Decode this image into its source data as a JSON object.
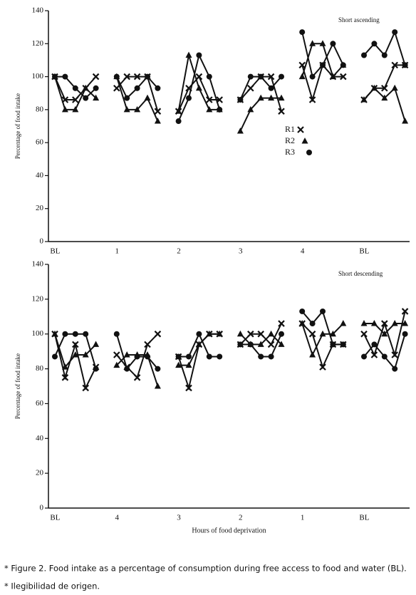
{
  "chart_data": [
    {
      "type": "line",
      "annotation": "Short ascending",
      "ylabel": "Percentage of food intake",
      "categories": [
        null,
        "BL",
        null,
        null,
        null,
        null,
        null,
        "1",
        null,
        null,
        null,
        null,
        null,
        "2",
        null,
        null,
        null,
        null,
        null,
        "3",
        null,
        null,
        null,
        null,
        null,
        "4",
        null,
        null,
        null,
        null,
        null,
        "BL",
        null,
        null,
        null
      ],
      "ylim": [
        0,
        140
      ],
      "yticks": [
        0,
        20,
        40,
        60,
        80,
        100,
        120,
        140
      ],
      "grid": false,
      "legend": "center-right",
      "series": [
        {
          "name": "R1",
          "marker": "x",
          "color": "#111111",
          "values": [
            100,
            86,
            86,
            93,
            100,
            null,
            93,
            100,
            100,
            100,
            79,
            null,
            79,
            93,
            100,
            86,
            86,
            null,
            86,
            93,
            100,
            100,
            79,
            null,
            107,
            86,
            107,
            100,
            100,
            null,
            86,
            93,
            93,
            107,
            107
          ]
        },
        {
          "name": "R2",
          "marker": "triangle",
          "color": "#111111",
          "values": [
            100,
            80,
            80,
            93,
            87,
            null,
            100,
            80,
            80,
            87,
            73,
            null,
            79,
            113,
            93,
            80,
            80,
            null,
            67,
            80,
            87,
            87,
            87,
            null,
            100,
            120,
            120,
            100,
            107,
            null,
            86,
            93,
            87,
            93,
            73
          ]
        },
        {
          "name": "R3",
          "marker": "circle",
          "color": "#111111",
          "values": [
            100,
            100,
            93,
            87,
            93,
            null,
            100,
            87,
            93,
            100,
            93,
            null,
            73,
            87,
            113,
            100,
            80,
            null,
            86,
            100,
            100,
            93,
            100,
            null,
            127,
            100,
            107,
            120,
            107,
            null,
            113,
            120,
            113,
            127,
            107
          ]
        }
      ]
    },
    {
      "type": "line",
      "annotation": "Short descending",
      "ylabel": "Percentage of food intake",
      "xlabel": "Hours of food deprivation",
      "categories": [
        null,
        "BL",
        null,
        null,
        null,
        null,
        null,
        "4",
        null,
        null,
        null,
        null,
        null,
        "3",
        null,
        null,
        null,
        null,
        null,
        "2",
        null,
        null,
        null,
        null,
        null,
        "1",
        null,
        null,
        null,
        null,
        null,
        "BL",
        null,
        null,
        null
      ],
      "ylim": [
        0,
        140
      ],
      "yticks": [
        0,
        20,
        40,
        60,
        80,
        100,
        120,
        140
      ],
      "grid": false,
      "series": [
        {
          "name": "R1",
          "marker": "x",
          "color": "#111111",
          "values": [
            100,
            75,
            94,
            69,
            81,
            null,
            88,
            81,
            75,
            94,
            100,
            null,
            87,
            69,
            94,
            100,
            100,
            null,
            94,
            100,
            100,
            94,
            106,
            null,
            106,
            100,
            81,
            94,
            94,
            null,
            100,
            88,
            106,
            88,
            113
          ]
        },
        {
          "name": "R2",
          "marker": "triangle",
          "color": "#111111",
          "values": [
            100,
            81,
            88,
            88,
            94,
            null,
            82,
            88,
            88,
            88,
            70,
            null,
            82,
            82,
            94,
            100,
            100,
            null,
            100,
            94,
            94,
            100,
            94,
            null,
            106,
            88,
            100,
            100,
            106,
            null,
            106,
            106,
            100,
            106,
            106
          ]
        },
        {
          "name": "R3",
          "marker": "circle",
          "color": "#111111",
          "values": [
            87,
            100,
            100,
            100,
            80,
            null,
            100,
            80,
            87,
            87,
            80,
            null,
            87,
            87,
            100,
            87,
            87,
            null,
            94,
            94,
            87,
            87,
            100,
            null,
            113,
            106,
            113,
            94,
            94,
            null,
            87,
            94,
            87,
            80,
            100
          ]
        }
      ]
    }
  ],
  "caption": "* Figure 2. Food intake as a percentage of consumption during free access to food and water (BL).",
  "note": "* Ilegibilidad de origen."
}
